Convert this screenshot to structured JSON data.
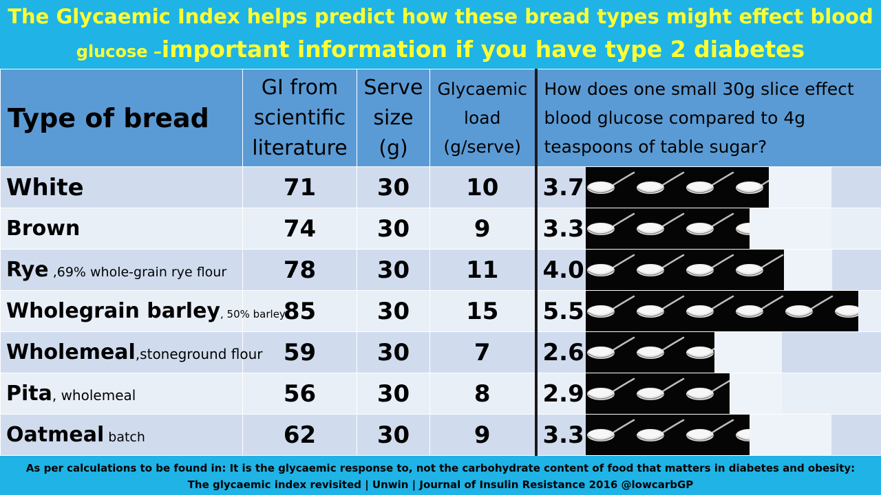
{
  "title": {
    "line1": "The Glycaemic Index helps predict how these bread types might effect blood",
    "line2_small": "glucose –",
    "line2_big": "important information if you have type 2 diabetes"
  },
  "table": {
    "headers": {
      "type": "Type of bread",
      "gi": [
        "GI from",
        "scientific",
        "literature"
      ],
      "serve": [
        "Serve",
        "size",
        "(g)"
      ],
      "gl": [
        "Glycaemic",
        "load",
        "(g/serve)"
      ],
      "compare": [
        "How does one small 30g slice effect",
        "blood glucose compared to 4g",
        "teaspoons of table sugar?"
      ]
    },
    "rows": [
      {
        "name": "White",
        "note": "",
        "gi": "71",
        "serve": "30",
        "gl": "10",
        "teaspoons": "3.7",
        "teaspoons_value": 3.7
      },
      {
        "name": "Brown",
        "note": "",
        "gi": "74",
        "serve": "30",
        "gl": "9",
        "teaspoons": "3.3",
        "teaspoons_value": 3.3
      },
      {
        "name": "Rye",
        "note": " ,69% whole-grain rye flour",
        "gi": "78",
        "serve": "30",
        "gl": "11",
        "teaspoons": "4.0",
        "teaspoons_value": 4.0
      },
      {
        "name": "Wholegrain barley",
        "note": ", 50% barley",
        "gi": "85",
        "serve": "30",
        "gl": "15",
        "teaspoons": "5.5",
        "teaspoons_value": 5.5
      },
      {
        "name": "Wholemeal",
        "note": ",stoneground flour",
        "gi": "59",
        "serve": "30",
        "gl": "7",
        "teaspoons": "2.6",
        "teaspoons_value": 2.6
      },
      {
        "name": "Pita",
        "note": ", wholemeal",
        "gi": "56",
        "serve": "30",
        "gl": "8",
        "teaspoons": "2.9",
        "teaspoons_value": 2.9
      },
      {
        "name": "Oatmeal",
        "note": " batch",
        "gi": "62",
        "serve": "30",
        "gl": "9",
        "teaspoons": "3.3",
        "teaspoons_value": 3.3
      }
    ]
  },
  "footer": {
    "line1": "As per calculations to be found in: It is the glycaemic response to, not the carbohydrate content of food that matters in diabetes and obesity:",
    "line2": "The glycaemic index revisited | Unwin | Journal of Insulin Resistance 2016   @lowcarbGP"
  },
  "colors": {
    "banner": "#1fb3e6",
    "title_text": "#ffff33",
    "header_bg": "#5b9bd5",
    "row_dark": "#d0dcee",
    "row_light": "#e9eff7"
  },
  "icons": {
    "teaspoon": "teaspoon-sugar-icon"
  }
}
